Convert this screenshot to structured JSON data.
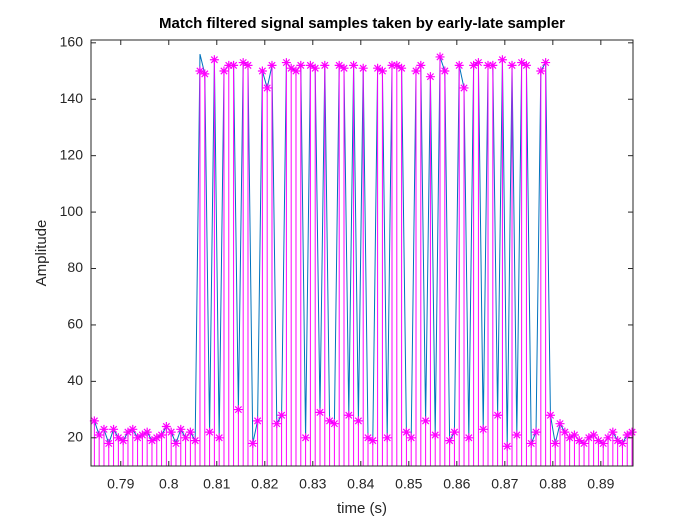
{
  "chart_data": {
    "type": "stem",
    "title": "Match filtered signal samples taken by early-late sampler",
    "x_label": "time (s)",
    "y_label": "Amplitude",
    "xlim": [
      0.7838,
      0.8967
    ],
    "ylim": [
      10,
      161
    ],
    "xticks": [
      0.79,
      0.8,
      0.81,
      0.82,
      0.83,
      0.84,
      0.85,
      0.86,
      0.87,
      0.88,
      0.89
    ],
    "yticks": [
      20,
      40,
      60,
      80,
      100,
      120,
      140,
      160
    ],
    "x": [
      0.7845,
      0.7855,
      0.7865,
      0.7875,
      0.7885,
      0.7895,
      0.7905,
      0.7915,
      0.7925,
      0.7935,
      0.7945,
      0.7955,
      0.7965,
      0.7975,
      0.7985,
      0.7995,
      0.8005,
      0.8015,
      0.8025,
      0.8035,
      0.8045,
      0.8055,
      0.8065,
      0.8075,
      0.8085,
      0.8095,
      0.8105,
      0.8115,
      0.8125,
      0.8135,
      0.8145,
      0.8155,
      0.8165,
      0.8175,
      0.8185,
      0.8195,
      0.8205,
      0.8215,
      0.8225,
      0.8235,
      0.8245,
      0.8255,
      0.8265,
      0.8275,
      0.8285,
      0.8295,
      0.8305,
      0.8315,
      0.8325,
      0.8335,
      0.8345,
      0.8355,
      0.8365,
      0.8375,
      0.8385,
      0.8395,
      0.8405,
      0.8415,
      0.8425,
      0.8435,
      0.8445,
      0.8455,
      0.8465,
      0.8475,
      0.8485,
      0.8495,
      0.8505,
      0.8515,
      0.8525,
      0.8535,
      0.8545,
      0.8555,
      0.8565,
      0.8575,
      0.8585,
      0.8595,
      0.8605,
      0.8615,
      0.8625,
      0.8635,
      0.8645,
      0.8655,
      0.8665,
      0.8675,
      0.8685,
      0.8695,
      0.8705,
      0.8715,
      0.8725,
      0.8735,
      0.8745,
      0.8755,
      0.8765,
      0.8775,
      0.8785,
      0.8795,
      0.8805,
      0.8815,
      0.8825,
      0.8835,
      0.8845,
      0.8855,
      0.8865,
      0.8875,
      0.8885,
      0.8895,
      0.8905,
      0.8915,
      0.8925,
      0.8935,
      0.8945,
      0.8955,
      0.8965
    ],
    "series": [
      {
        "kind": "line",
        "color": "#0072BD",
        "values": [
          26,
          21,
          23,
          18,
          23,
          20,
          19,
          22,
          23,
          20,
          21,
          22,
          19,
          20,
          21,
          24,
          22,
          18,
          23,
          20,
          22,
          19,
          156,
          149,
          22,
          154,
          20,
          150,
          152,
          152,
          30,
          153,
          152,
          18,
          26,
          150,
          144,
          152,
          25,
          28,
          153,
          151,
          150,
          152,
          20,
          152,
          151,
          29,
          152,
          26,
          25,
          152,
          151,
          28,
          152,
          26,
          151,
          20,
          19,
          151,
          150,
          20,
          152,
          152,
          151,
          22,
          20,
          150,
          152,
          26,
          148,
          21,
          155,
          150,
          19,
          22,
          152,
          144,
          20,
          152,
          153,
          23,
          152,
          152,
          28,
          154,
          17,
          152,
          21,
          153,
          152,
          18,
          22,
          150,
          153,
          28,
          18,
          25,
          22,
          20,
          21,
          19,
          18,
          20,
          21,
          19,
          18,
          20,
          22,
          19,
          18,
          21,
          22
        ]
      },
      {
        "kind": "stem",
        "color": "#FF00FF",
        "values": [
          26,
          21,
          23,
          18,
          23,
          20,
          19,
          22,
          23,
          20,
          21,
          22,
          19,
          20,
          21,
          24,
          22,
          18,
          23,
          20,
          22,
          19,
          150,
          149,
          22,
          154,
          20,
          150,
          152,
          152,
          30,
          153,
          152,
          18,
          26,
          150,
          144,
          152,
          25,
          28,
          153,
          151,
          150,
          152,
          20,
          152,
          151,
          29,
          152,
          26,
          25,
          152,
          151,
          28,
          152,
          26,
          151,
          20,
          19,
          151,
          150,
          20,
          152,
          152,
          151,
          22,
          20,
          150,
          152,
          26,
          148,
          21,
          155,
          150,
          19,
          22,
          152,
          144,
          20,
          152,
          153,
          23,
          152,
          152,
          28,
          154,
          17,
          152,
          21,
          153,
          152,
          18,
          22,
          150,
          153,
          28,
          18,
          25,
          22,
          20,
          21,
          19,
          18,
          20,
          21,
          19,
          18,
          20,
          22,
          19,
          18,
          21,
          22
        ]
      }
    ]
  }
}
